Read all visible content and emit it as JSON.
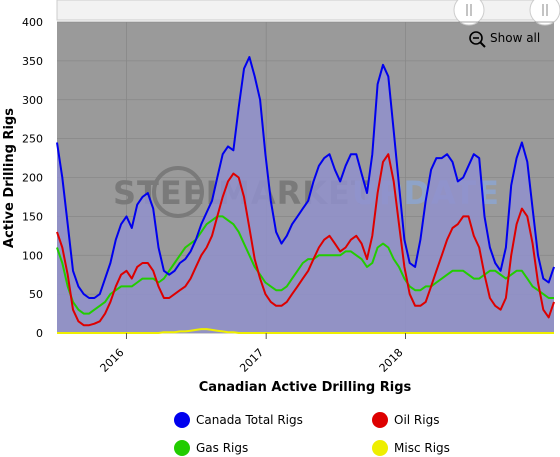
{
  "watermark": {
    "left": "STEEL",
    "middle": "MARKET",
    "right": "UPDATE"
  },
  "show_all_label": "Show all",
  "chart_data": {
    "type": "area",
    "title": "",
    "xlabel": "Canadian Active Drilling Rigs",
    "ylabel": "Active Drilling Rigs",
    "ylim": [
      0,
      400
    ],
    "yticks": [
      0,
      50,
      100,
      150,
      200,
      250,
      300,
      350,
      400
    ],
    "xlim": [
      "2015-07-03",
      "2019-01-25"
    ],
    "xticks": [
      {
        "label": "2016",
        "date": "2016-01-01"
      },
      {
        "label": "2017",
        "date": "2017-01-01"
      },
      {
        "label": "2018",
        "date": "2018-01-01"
      }
    ],
    "grid": true,
    "legend_position": "bottom",
    "x": [
      "2015-07-03",
      "2015-07-17",
      "2015-07-31",
      "2015-08-14",
      "2015-08-28",
      "2015-09-11",
      "2015-09-25",
      "2015-10-09",
      "2015-10-23",
      "2015-11-06",
      "2015-11-20",
      "2015-12-04",
      "2015-12-18",
      "2016-01-01",
      "2016-01-15",
      "2016-01-29",
      "2016-02-12",
      "2016-02-26",
      "2016-03-11",
      "2016-03-25",
      "2016-04-08",
      "2016-04-22",
      "2016-05-06",
      "2016-05-20",
      "2016-06-03",
      "2016-06-17",
      "2016-07-01",
      "2016-07-15",
      "2016-07-29",
      "2016-08-12",
      "2016-08-26",
      "2016-09-09",
      "2016-09-23",
      "2016-10-07",
      "2016-10-21",
      "2016-11-04",
      "2016-11-18",
      "2016-12-02",
      "2016-12-16",
      "2016-12-30",
      "2017-01-13",
      "2017-01-27",
      "2017-02-10",
      "2017-02-24",
      "2017-03-10",
      "2017-03-24",
      "2017-04-07",
      "2017-04-21",
      "2017-05-05",
      "2017-05-19",
      "2017-06-02",
      "2017-06-16",
      "2017-06-30",
      "2017-07-14",
      "2017-07-28",
      "2017-08-11",
      "2017-08-25",
      "2017-09-08",
      "2017-09-22",
      "2017-10-06",
      "2017-10-20",
      "2017-11-03",
      "2017-11-17",
      "2017-12-01",
      "2017-12-15",
      "2017-12-29",
      "2018-01-12",
      "2018-01-26",
      "2018-02-09",
      "2018-02-23",
      "2018-03-09",
      "2018-03-23",
      "2018-04-06",
      "2018-04-20",
      "2018-05-04",
      "2018-05-18",
      "2018-06-01",
      "2018-06-15",
      "2018-06-29",
      "2018-07-13",
      "2018-07-27",
      "2018-08-10",
      "2018-08-24",
      "2018-09-07",
      "2018-09-21",
      "2018-10-05",
      "2018-10-19",
      "2018-11-02",
      "2018-11-16",
      "2018-11-30",
      "2018-12-14",
      "2018-12-28",
      "2019-01-11",
      "2019-01-25"
    ],
    "series": [
      {
        "name": "Canada Total Rigs",
        "color": "#0000ee",
        "values": [
          245,
          200,
          140,
          80,
          60,
          50,
          45,
          45,
          50,
          70,
          90,
          120,
          140,
          150,
          135,
          165,
          175,
          180,
          160,
          110,
          80,
          75,
          80,
          90,
          95,
          105,
          120,
          140,
          155,
          170,
          200,
          230,
          240,
          235,
          290,
          340,
          355,
          330,
          300,
          230,
          170,
          130,
          115,
          125,
          140,
          150,
          160,
          170,
          195,
          215,
          225,
          230,
          210,
          195,
          215,
          230,
          230,
          205,
          180,
          230,
          320,
          345,
          330,
          260,
          190,
          120,
          90,
          85,
          120,
          170,
          210,
          225,
          225,
          230,
          220,
          195,
          200,
          215,
          230,
          225,
          150,
          110,
          90,
          80,
          110,
          190,
          225,
          245,
          220,
          160,
          100,
          70,
          65,
          85
        ]
      },
      {
        "name": "Oil Rigs",
        "color": "#dd0000",
        "values": [
          130,
          110,
          75,
          30,
          15,
          10,
          10,
          12,
          15,
          25,
          40,
          60,
          75,
          80,
          70,
          85,
          90,
          90,
          80,
          60,
          45,
          45,
          50,
          55,
          60,
          70,
          85,
          100,
          110,
          125,
          150,
          175,
          195,
          205,
          200,
          175,
          135,
          95,
          70,
          50,
          40,
          35,
          35,
          40,
          50,
          60,
          70,
          80,
          95,
          110,
          120,
          125,
          115,
          105,
          110,
          120,
          125,
          115,
          95,
          125,
          180,
          220,
          230,
          195,
          140,
          85,
          50,
          35,
          35,
          40,
          60,
          80,
          100,
          120,
          135,
          140,
          150,
          150,
          125,
          110,
          75,
          45,
          35,
          30,
          45,
          100,
          140,
          160,
          150,
          115,
          65,
          30,
          20,
          40
        ]
      },
      {
        "name": "Gas Rigs",
        "color": "#22cc00",
        "values": [
          110,
          90,
          60,
          40,
          30,
          25,
          25,
          30,
          35,
          40,
          50,
          55,
          60,
          60,
          60,
          65,
          70,
          70,
          70,
          65,
          70,
          80,
          90,
          100,
          110,
          115,
          120,
          130,
          140,
          145,
          150,
          150,
          145,
          140,
          130,
          115,
          100,
          85,
          75,
          65,
          60,
          55,
          55,
          60,
          70,
          80,
          90,
          95,
          95,
          100,
          100,
          100,
          100,
          100,
          105,
          105,
          100,
          95,
          85,
          90,
          110,
          115,
          110,
          95,
          85,
          70,
          60,
          55,
          55,
          60,
          60,
          65,
          70,
          75,
          80,
          80,
          80,
          75,
          70,
          70,
          75,
          80,
          80,
          75,
          70,
          75,
          80,
          80,
          70,
          60,
          55,
          50,
          45,
          45
        ]
      },
      {
        "name": "Misc Rigs",
        "color": "#eeee00",
        "values": [
          0,
          0,
          0,
          0,
          0,
          0,
          0,
          0,
          0,
          0,
          0,
          0,
          0,
          0,
          0,
          0,
          0,
          0,
          0,
          0,
          1,
          1,
          1,
          2,
          2,
          3,
          4,
          5,
          5,
          4,
          3,
          2,
          1,
          1,
          0,
          0,
          0,
          0,
          0,
          0,
          0,
          0,
          0,
          0,
          0,
          0,
          0,
          0,
          0,
          0,
          0,
          0,
          0,
          0,
          0,
          0,
          0,
          0,
          0,
          0,
          0,
          0,
          0,
          0,
          0,
          0,
          0,
          0,
          0,
          0,
          0,
          0,
          0,
          0,
          0,
          0,
          0,
          0,
          0,
          0,
          0,
          0,
          0,
          0,
          0,
          0,
          0,
          0,
          0,
          0,
          0,
          0,
          0,
          0
        ]
      }
    ]
  }
}
